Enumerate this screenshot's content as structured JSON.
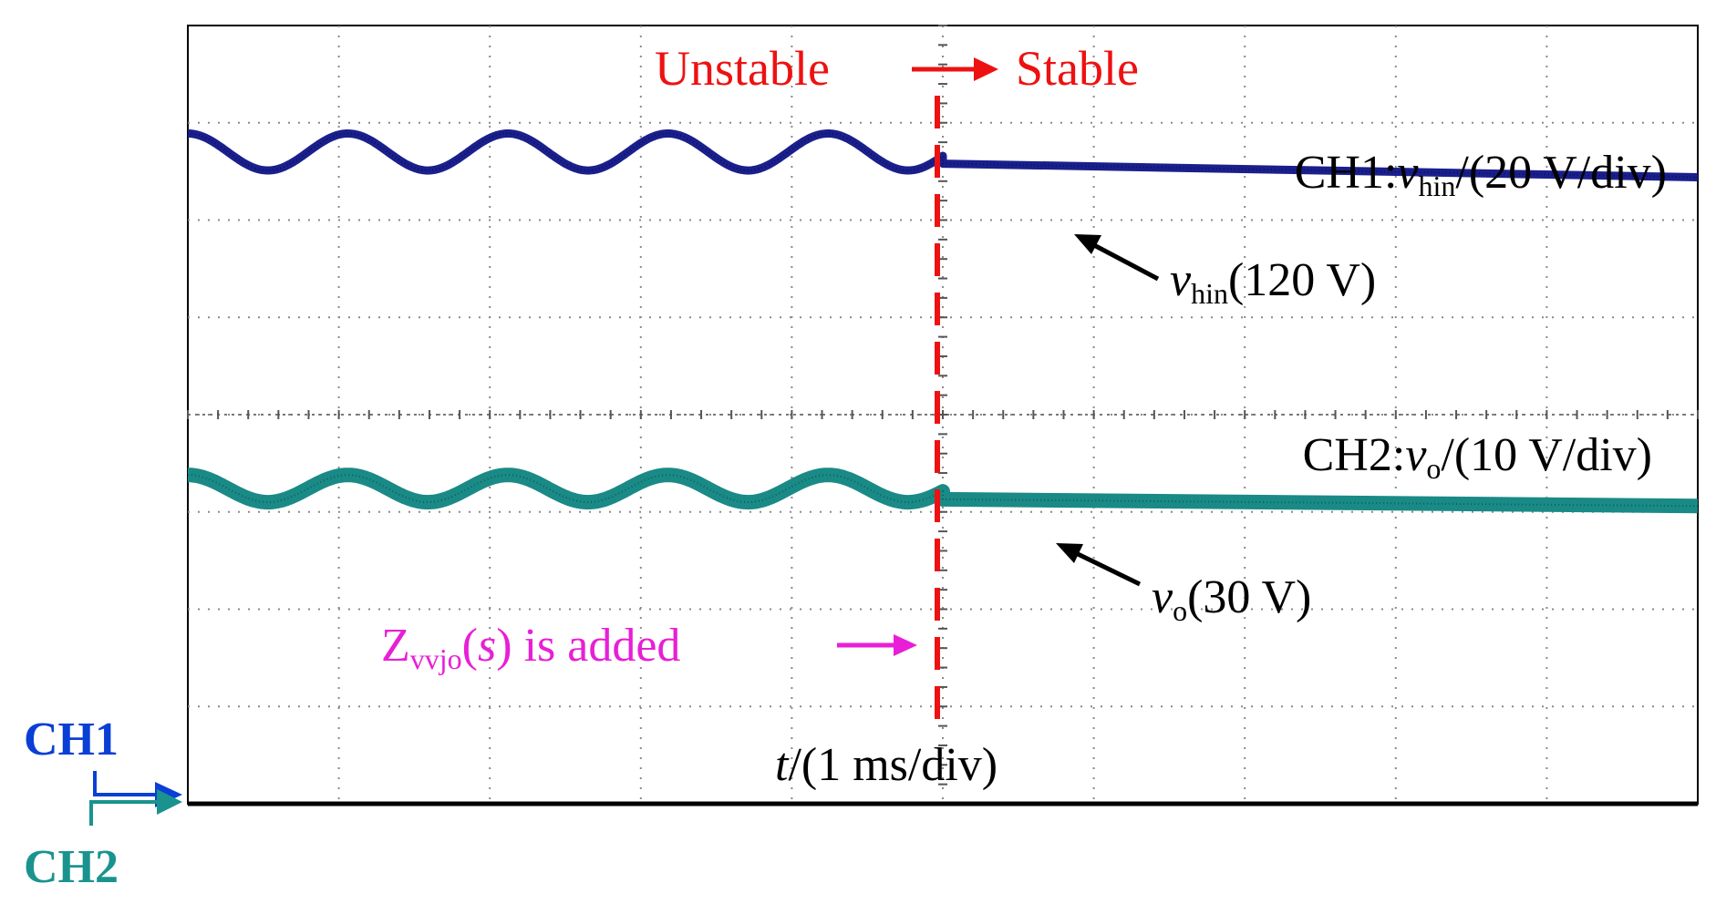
{
  "chart_data": {
    "type": "line",
    "title": "Unstable → Stable",
    "title_parts": {
      "before": "Unstable",
      "arrow": "→",
      "after": "Stable"
    },
    "xlabel": {
      "var": "t",
      "rest": "/(1 ms/div)"
    },
    "grid": true,
    "divisions": {
      "x": 10,
      "y": 8
    },
    "x_unit": "ms",
    "x_range_div": [
      0,
      10
    ],
    "y_range_div": [
      0,
      8
    ],
    "event": {
      "x_div": 5.0,
      "label": {
        "main": "Z",
        "sub": "vvjo",
        "open": "(",
        "var": "s",
        "close": ")",
        "rest": " is added"
      },
      "arrow": "→"
    },
    "series": [
      {
        "name": "CH1",
        "signal": {
          "var": "v",
          "sub": "hin"
        },
        "channel_label": {
          "ch": "CH1:",
          "var": "v",
          "sub": "hin",
          "rest": "/(20 V/div)"
        },
        "value_label": {
          "var": "v",
          "sub": "hin",
          "rest": "(120 V)"
        },
        "scale_v_per_div": 20,
        "steady_value_V": 120,
        "unstable": {
          "x_start_div": 0.0,
          "x_end_div": 5.0,
          "period_div": 1.06,
          "center_div": 6.7,
          "amplitude_div": 0.19,
          "phase_div": 0.0
        },
        "stable": {
          "y_start_div": 6.58,
          "y_end_div": 6.44
        },
        "color": "#1a1f8c"
      },
      {
        "name": "CH2",
        "signal": {
          "var": "v",
          "sub": "o"
        },
        "channel_label": {
          "ch": "CH2:",
          "var": "v",
          "sub": "o",
          "rest": "/(10 V/div)"
        },
        "value_label": {
          "var": "v",
          "sub": "o",
          "rest": "(30 V)"
        },
        "scale_v_per_div": 10,
        "steady_value_V": 30,
        "unstable": {
          "x_start_div": 0.0,
          "x_end_div": 5.0,
          "period_div": 1.06,
          "center_div": 3.24,
          "amplitude_div": 0.14,
          "phase_div": 0.0
        },
        "stable": {
          "y_start_div": 3.13,
          "y_end_div": 3.06
        },
        "color": "#1a8a86"
      }
    ]
  },
  "markers": [
    {
      "label": "CH1",
      "color": "#0a3fd6"
    },
    {
      "label": "CH2",
      "color": "#1a938f"
    }
  ],
  "colors": {
    "annotation_red": "#ee1111",
    "annotation_magenta": "#e81fd6",
    "grid": "#8a8a8a",
    "frame": "#000000"
  }
}
